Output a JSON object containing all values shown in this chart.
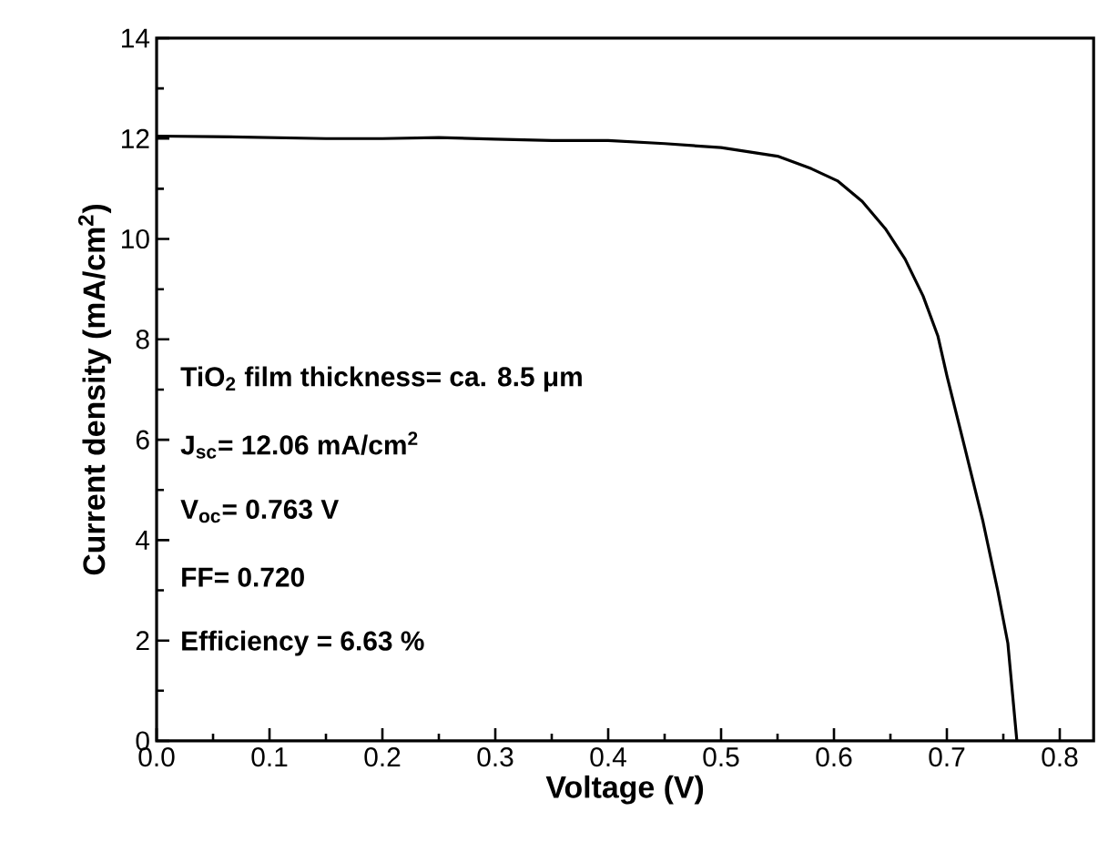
{
  "chart_data": {
    "type": "line",
    "xlabel": "Voltage (V)",
    "ylabel": "Current density (mA/cm$^{2}$)",
    "xlim": [
      0,
      0.83
    ],
    "xticks": [
      {
        "value": 0,
        "label": "0.0"
      },
      0.1,
      0.2,
      0.3,
      0.4,
      0.5,
      0.6,
      0.7,
      0.8
    ],
    "ylim": [
      0,
      14
    ],
    "yticks": [
      0,
      2,
      4,
      6,
      8,
      10,
      12,
      14
    ],
    "grid": false,
    "marker": "none",
    "line_style": "solid",
    "annotations": [
      "TiO$_{2}$ film thickness= ca. 8.5 μm",
      "J$_{sc}$= 12.06 mA/cm$^{2}$",
      "V$_{oc}$= 0.763 V",
      "FF= 0.720",
      "Efficiency = 6.63 %"
    ],
    "series": [
      {
        "color": "#000000",
        "x": [
          0,
          0.05,
          0.1,
          0.15,
          0.2,
          0.25,
          0.3,
          0.35,
          0.4,
          0.45,
          0.5,
          0.55,
          0.58,
          0.603,
          0.625,
          0.646,
          0.663,
          0.679,
          0.692,
          0.7,
          0.716,
          0.732,
          0.745,
          0.754,
          0.762
        ],
        "values": [
          12.05,
          12.04,
          12.02,
          12.0,
          12.0,
          12.02,
          11.99,
          11.96,
          11.96,
          11.9,
          11.82,
          11.65,
          11.4,
          11.16,
          10.75,
          10.19,
          9.6,
          8.86,
          8.07,
          7.28,
          5.83,
          4.37,
          3.0,
          1.95,
          0
        ]
      }
    ]
  }
}
